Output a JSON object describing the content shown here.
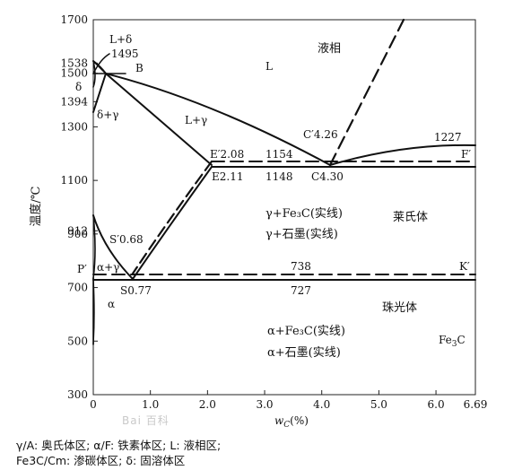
{
  "axes": {
    "ylabel": "温度/℃",
    "xlabel_main": "w",
    "xlabel_sub": "C",
    "xlabel_unit": "(%)",
    "y_ticks": [
      "1700",
      "1538",
      "1500",
      "1394",
      "1300",
      "1100",
      "912",
      "900",
      "700",
      "500",
      "300"
    ],
    "y_tick_values": [
      1700,
      1538,
      1500,
      1394,
      1300,
      1100,
      912,
      900,
      700,
      500,
      300
    ],
    "x_ticks": [
      "0",
      "1.0",
      "2.0",
      "3.0",
      "4.0",
      "5.0",
      "6.0",
      "6.69"
    ],
    "x_tick_values": [
      0,
      1.0,
      2.0,
      3.0,
      4.0,
      5.0,
      6.0,
      6.69
    ],
    "xlim": [
      0,
      6.69
    ],
    "ylim": [
      300,
      1700
    ]
  },
  "points": {
    "l_delta": "L+δ",
    "t1495": "1495",
    "B": "B",
    "delta": "δ",
    "delta_gamma": "δ+γ",
    "L": "L",
    "liquid": "液相",
    "L_gamma": "L+γ",
    "C_prime": "C′4.26",
    "t1227": "1227",
    "E_prime": "E′2.08",
    "t1154": "1154",
    "F_prime": "F′",
    "E": "E2.11",
    "t1148": "1148",
    "C": "C4.30",
    "S_prime": "S′0.68",
    "P_prime": "P′",
    "alpha_gamma": "α+γ",
    "t738": "738",
    "K_prime": "K′",
    "S": "S0.77",
    "t727": "727",
    "alpha": "α",
    "austenite_fe3c": "γ+Fe₃C(实线)",
    "austenite_graphite": "γ+石墨(实线)",
    "ledeburite": "莱氏体",
    "pearlite": "珠光体",
    "ferrite_fe3c": "α+Fe₃C(实线)",
    "ferrite_graphite": "α+石墨(实线)",
    "fe3c_main": "Fe",
    "fe3c_sub": "3",
    "fe3c_tail": "C"
  },
  "watermark": "Bai 百科",
  "legend": {
    "line1": "γ/A: 奥氏体区; α/F: 铁素体区; L: 液相区;",
    "line2": "Fe3C/Cm: 渗碳体区; δ: 固溶体区"
  }
}
